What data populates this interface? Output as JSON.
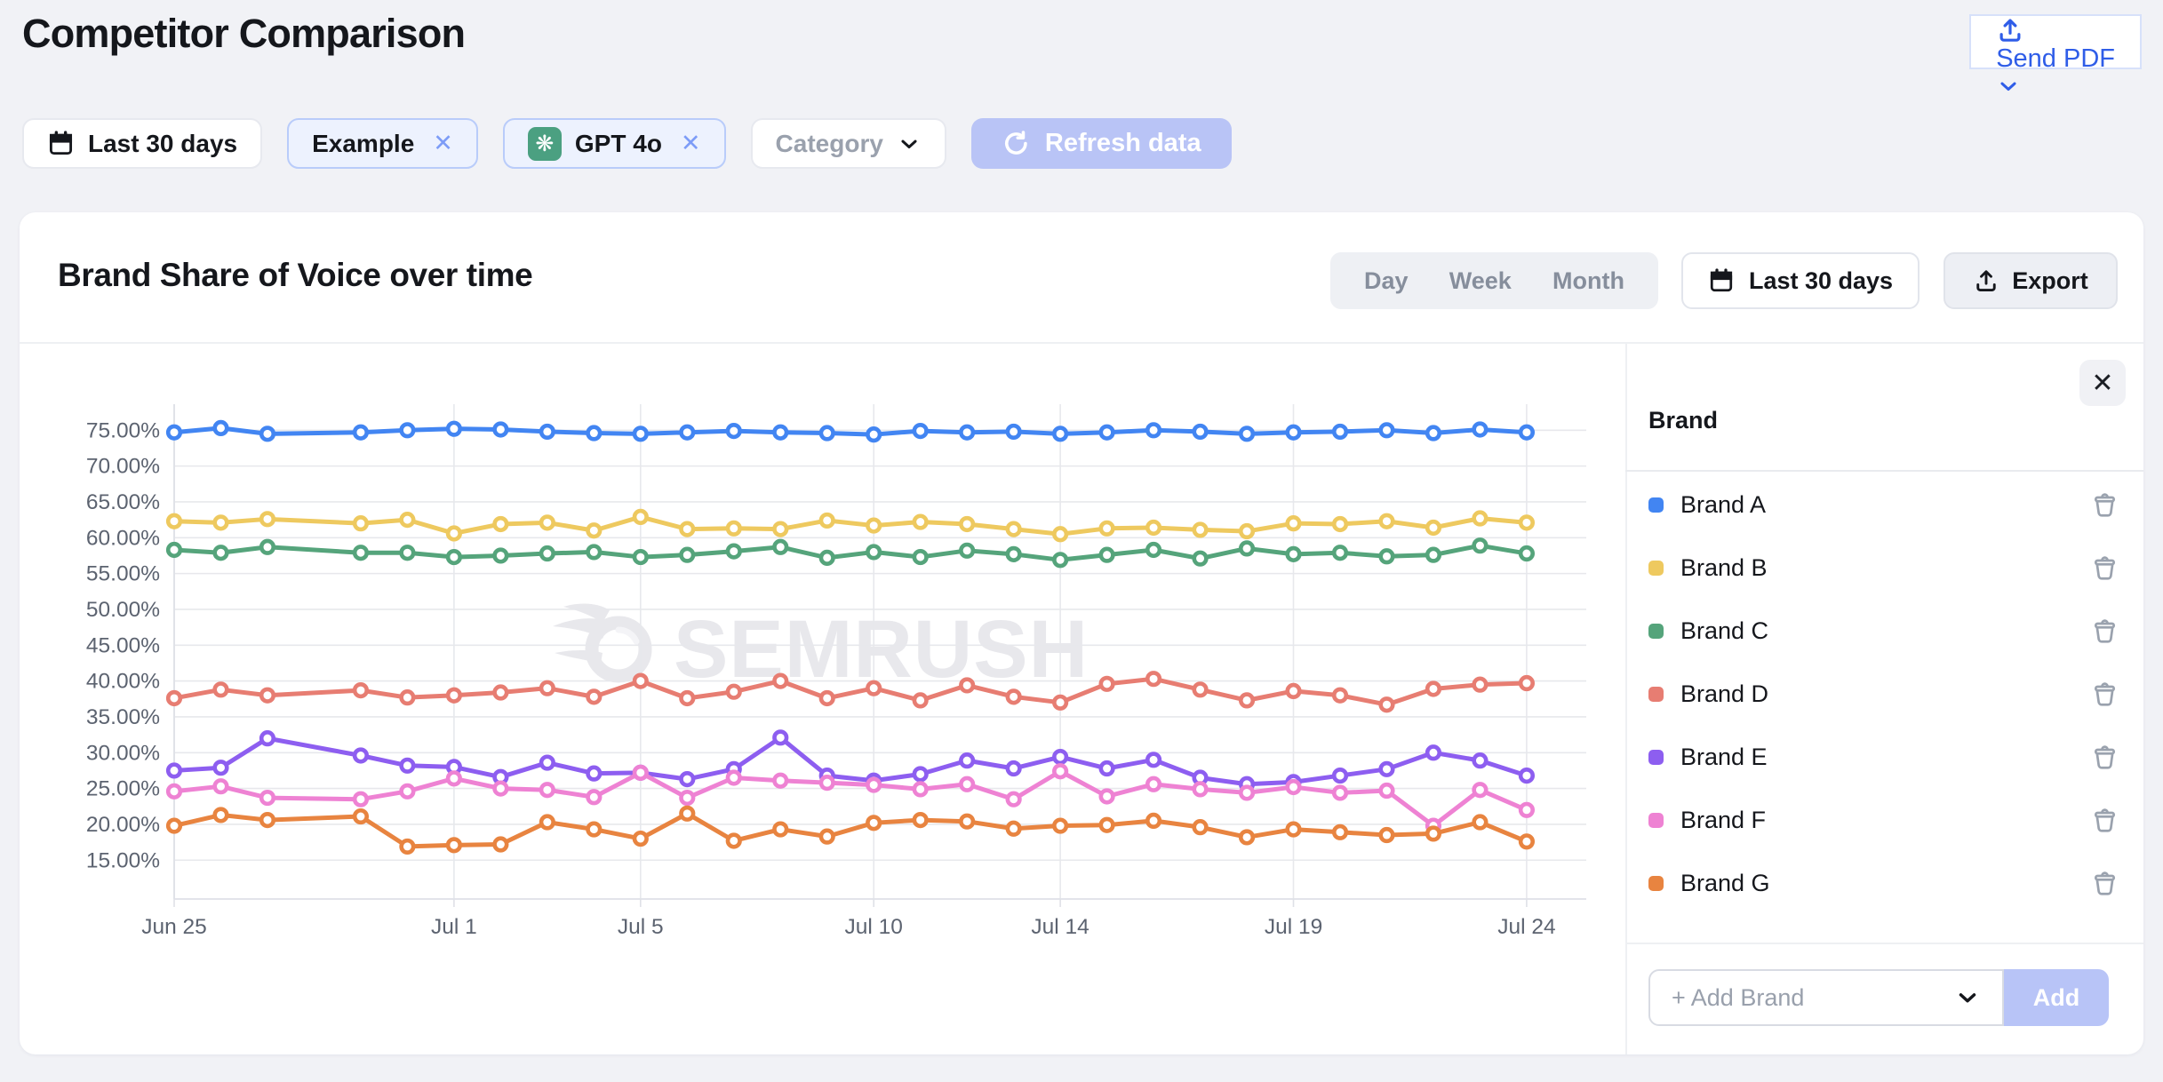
{
  "page": {
    "title": "Competitor Comparison"
  },
  "header": {
    "send_pdf_label": "Send PDF"
  },
  "filters": {
    "date_range": "Last 30 days",
    "chips": [
      {
        "label": "Example"
      },
      {
        "label": "GPT 4o"
      }
    ],
    "category_label": "Category",
    "refresh_label": "Refresh data"
  },
  "card": {
    "title": "Brand Share of Voice over time",
    "granularity": [
      "Day",
      "Week",
      "Month"
    ],
    "date_range": "Last 30 days",
    "export_label": "Export"
  },
  "panel": {
    "header": "Brand",
    "add_placeholder": "+ Add Brand",
    "add_button": "Add"
  },
  "watermark": {
    "text": "SEMRUSH"
  },
  "colors": {
    "accent_blue": "#2f5de8",
    "disabled_button": "#b9c4f6",
    "grid": "#e7e8ec",
    "axis": "#dfe1e7",
    "tick_text": "#5c6370"
  },
  "chart_data": {
    "type": "line",
    "title": "Brand Share of Voice over time",
    "x": [
      "Jun 25",
      "Jun 26",
      "Jun 27",
      "Jun 28",
      "Jun 29",
      "Jun 30",
      "Jul 1",
      "Jul 2",
      "Jul 3",
      "Jul 4",
      "Jul 5",
      "Jul 6",
      "Jul 7",
      "Jul 8",
      "Jul 9",
      "Jul 10",
      "Jul 11",
      "Jul 12",
      "Jul 13",
      "Jul 14",
      "Jul 15",
      "Jul 16",
      "Jul 17",
      "Jul 18",
      "Jul 19",
      "Jul 20",
      "Jul 21",
      "Jul 22",
      "Jul 23",
      "Jul 24"
    ],
    "x_tick_labels": [
      "Jun 25",
      "Jul 1",
      "Jul 5",
      "Jul 10",
      "Jul 14",
      "Jul 19",
      "Jul 24"
    ],
    "x_tick_indices": [
      0,
      6,
      10,
      15,
      19,
      24,
      29
    ],
    "y_ticks": [
      "75.00%",
      "70.00%",
      "65.00%",
      "60.00%",
      "55.00%",
      "50.00%",
      "45.00%",
      "40.00%",
      "35.00%",
      "30.00%",
      "25.00%",
      "20.00%",
      "15.00%"
    ],
    "ylim": [
      15,
      75
    ],
    "grid": true,
    "legend_position": "right-panel",
    "note": "No data point rendered for Jun 28; lines connect across the gap.",
    "series": [
      {
        "name": "Brand A",
        "color": "#4285f2",
        "values": [
          74.7,
          75.3,
          74.5,
          null,
          74.7,
          75.0,
          75.2,
          75.1,
          74.8,
          74.6,
          74.5,
          74.7,
          74.9,
          74.7,
          74.6,
          74.4,
          74.9,
          74.7,
          74.8,
          74.5,
          74.7,
          75.0,
          74.8,
          74.5,
          74.7,
          74.8,
          75.0,
          74.6,
          75.1,
          74.7
        ]
      },
      {
        "name": "Brand B",
        "color": "#eec95f",
        "values": [
          62.3,
          62.1,
          62.6,
          null,
          62.0,
          62.5,
          60.6,
          61.9,
          62.1,
          61.0,
          62.9,
          61.2,
          61.3,
          61.2,
          62.4,
          61.7,
          62.2,
          61.9,
          61.2,
          60.5,
          61.3,
          61.4,
          61.1,
          60.9,
          62.0,
          61.9,
          62.3,
          61.4,
          62.7,
          62.1
        ]
      },
      {
        "name": "Brand C",
        "color": "#55a47b",
        "values": [
          58.3,
          57.9,
          58.7,
          null,
          57.9,
          57.9,
          57.3,
          57.5,
          57.8,
          58.0,
          57.3,
          57.6,
          58.1,
          58.7,
          57.2,
          58.0,
          57.3,
          58.2,
          57.7,
          56.9,
          57.6,
          58.3,
          57.1,
          58.5,
          57.7,
          57.9,
          57.4,
          57.6,
          58.9,
          57.8
        ]
      },
      {
        "name": "Brand D",
        "color": "#e77d72",
        "values": [
          37.6,
          38.8,
          38.0,
          null,
          38.7,
          37.7,
          38.0,
          38.4,
          39.0,
          37.8,
          40.0,
          37.6,
          38.5,
          40.0,
          37.6,
          39.0,
          37.3,
          39.4,
          37.8,
          37.0,
          39.6,
          40.3,
          38.8,
          37.3,
          38.6,
          38.0,
          36.7,
          38.9,
          39.5,
          39.7
        ]
      },
      {
        "name": "Brand E",
        "color": "#8d5ef0",
        "values": [
          27.5,
          27.9,
          32.0,
          null,
          29.6,
          28.2,
          28.0,
          26.6,
          28.6,
          27.1,
          27.2,
          26.3,
          27.7,
          32.1,
          26.8,
          26.1,
          27.0,
          28.9,
          27.8,
          29.4,
          27.8,
          29.0,
          26.5,
          25.6,
          25.9,
          26.8,
          27.7,
          30.0,
          28.9,
          26.8
        ]
      },
      {
        "name": "Brand F",
        "color": "#ee82d3",
        "values": [
          24.6,
          25.3,
          23.7,
          null,
          23.5,
          24.6,
          26.4,
          25.0,
          24.8,
          23.8,
          27.2,
          23.7,
          26.5,
          26.1,
          25.8,
          25.5,
          24.9,
          25.6,
          23.5,
          27.4,
          23.9,
          25.6,
          24.9,
          24.4,
          25.2,
          24.4,
          24.7,
          19.8,
          24.8,
          22.0
        ]
      },
      {
        "name": "Brand G",
        "color": "#e88440",
        "values": [
          19.8,
          21.3,
          20.6,
          null,
          21.1,
          16.9,
          17.1,
          17.2,
          20.3,
          19.3,
          18.0,
          21.5,
          17.7,
          19.3,
          18.3,
          20.2,
          20.6,
          20.4,
          19.4,
          19.8,
          19.9,
          20.5,
          19.6,
          18.2,
          19.3,
          18.9,
          18.5,
          18.7,
          20.3,
          17.6
        ]
      }
    ]
  }
}
